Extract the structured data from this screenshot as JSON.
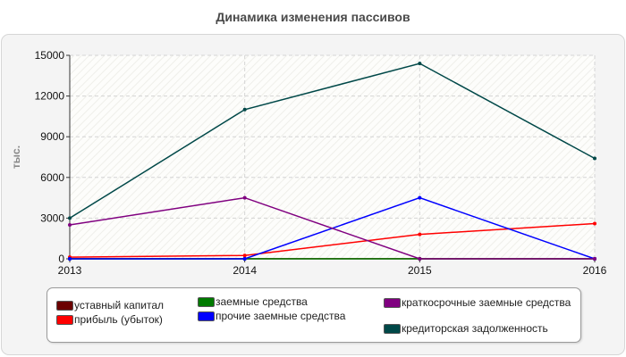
{
  "chart_data": {
    "type": "line",
    "title": "Динамика изменения пассивов",
    "ylabel": "тыс.",
    "xlabel": "",
    "categories": [
      "2013",
      "2014",
      "2015",
      "2016"
    ],
    "ylim": [
      0,
      15000
    ],
    "yticks": [
      "0",
      "3000",
      "6000",
      "9000",
      "12000",
      "15000"
    ],
    "grid": true,
    "legend_position": "bottom",
    "series": [
      {
        "name": "уставный капитал",
        "color": "#6b0000",
        "values": [
          10,
          10,
          10,
          10
        ]
      },
      {
        "name": "прибыль (убыток)",
        "color": "#ff0000",
        "values": [
          120,
          250,
          1800,
          2600
        ]
      },
      {
        "name": "заемные средства",
        "color": "#007a00",
        "values": [
          0,
          0,
          0,
          0
        ]
      },
      {
        "name": "прочие заемные средства",
        "color": "#0000ff",
        "values": [
          0,
          0,
          4500,
          0
        ]
      },
      {
        "name": "краткосрочные заемные средства",
        "color": "#800080",
        "values": [
          2500,
          4500,
          0,
          0
        ]
      },
      {
        "name": "кредиторская задолженность",
        "color": "#004848",
        "values": [
          3000,
          11000,
          14400,
          7400
        ]
      }
    ]
  }
}
